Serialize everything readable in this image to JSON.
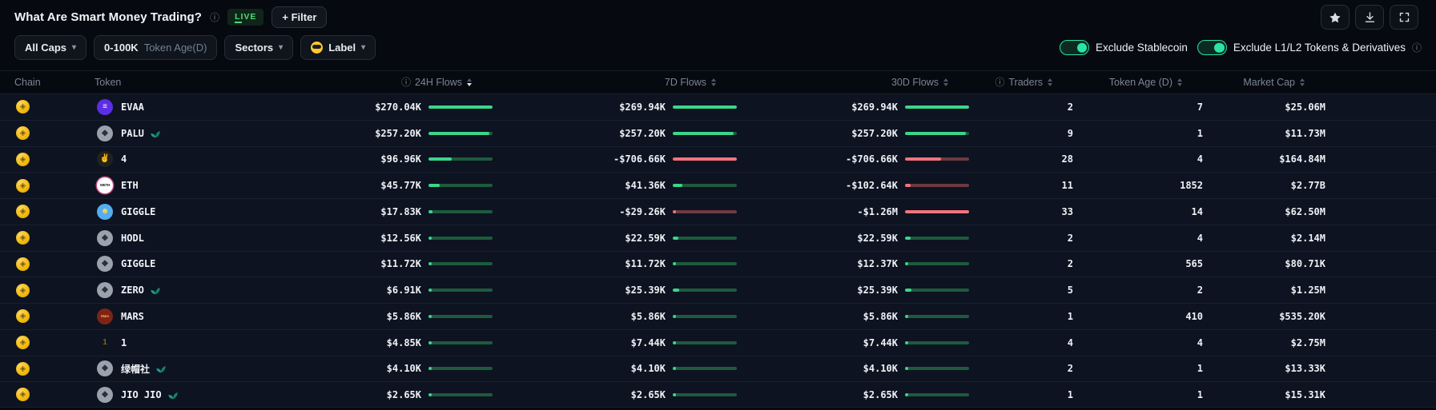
{
  "header": {
    "title": "What Are Smart Money Trading?",
    "live": "LIVE",
    "filter_button": "+ Filter",
    "action_icons": [
      "star-icon",
      "download-icon",
      "fullscreen-icon"
    ]
  },
  "filters": {
    "all_caps": "All Caps",
    "token_age_value": "0-100K",
    "token_age_label": "Token Age(D)",
    "sectors": "Sectors",
    "label": "Label"
  },
  "toggles": [
    {
      "label": "Exclude Stablecoin",
      "on": true,
      "info": false
    },
    {
      "label": "Exclude L1/L2 Tokens & Derivatives",
      "on": true,
      "info": true
    }
  ],
  "colors": {
    "positive": "#3bd68b",
    "positive_track": "#1d5b3d",
    "negative": "#f2747d",
    "negative_track": "#6e3a41",
    "accent_green": "#2ae3a5",
    "live_green": "#4fd978",
    "chain_gold": "#f0b90b"
  },
  "table": {
    "headers": [
      {
        "label": "Chain",
        "align": "left",
        "info": false,
        "sort": null
      },
      {
        "label": "Token",
        "align": "left",
        "info": false,
        "sort": null
      },
      {
        "label": "24H Flows",
        "align": "right",
        "info": true,
        "sort": "desc"
      },
      {
        "label": "7D Flows",
        "align": "right",
        "info": false,
        "sort": "none"
      },
      {
        "label": "30D Flows",
        "align": "right",
        "info": false,
        "sort": "none"
      },
      {
        "label": "Traders",
        "align": "right",
        "info": true,
        "sort": "none"
      },
      {
        "label": "Token Age (D)",
        "align": "right",
        "info": false,
        "sort": "none"
      },
      {
        "label": "Market Cap",
        "align": "right",
        "info": false,
        "sort": "none"
      }
    ],
    "rows": [
      {
        "chain": "BNB",
        "symbol": "EVAA",
        "sprout": false,
        "icon": {
          "bg": "#5b2ee5",
          "fg": "#ffffff",
          "glyph": "≡"
        },
        "flows": {
          "h24": {
            "v": 270.04,
            "text": "$270.04K"
          },
          "d7": {
            "v": 269.94,
            "text": "$269.94K"
          },
          "d30": {
            "v": 269.94,
            "text": "$269.94K"
          }
        },
        "traders": "2",
        "token_age": "7",
        "market_cap": "$25.06M"
      },
      {
        "chain": "BNB",
        "symbol": "PALU",
        "sprout": true,
        "icon": {
          "bg": "#9aa3ad",
          "fg": "#2b313a",
          "glyph": "◆"
        },
        "flows": {
          "h24": {
            "v": 257.2,
            "text": "$257.20K"
          },
          "d7": {
            "v": 257.2,
            "text": "$257.20K"
          },
          "d30": {
            "v": 257.2,
            "text": "$257.20K"
          }
        },
        "traders": "9",
        "token_age": "1",
        "market_cap": "$11.73M"
      },
      {
        "chain": "BNB",
        "symbol": "4",
        "sprout": false,
        "icon": {
          "bg": "#21231a",
          "fg": "#f2c33c",
          "glyph": "✌"
        },
        "flows": {
          "h24": {
            "v": 96.96,
            "text": "$96.96K"
          },
          "d7": {
            "v": -706.66,
            "text": "-$706.66K"
          },
          "d30": {
            "v": -706.66,
            "text": "-$706.66K"
          }
        },
        "traders": "28",
        "token_age": "4",
        "market_cap": "$164.84M"
      },
      {
        "chain": "BNB",
        "symbol": "ETH",
        "sprout": false,
        "icon": {
          "bg": "#ffffff",
          "fg": "#14171c",
          "glyph": "WETH",
          "ring": "#c9477e"
        },
        "flows": {
          "h24": {
            "v": 45.77,
            "text": "$45.77K"
          },
          "d7": {
            "v": 41.36,
            "text": "$41.36K"
          },
          "d30": {
            "v": -102.64,
            "text": "-$102.64K"
          }
        },
        "traders": "11",
        "token_age": "1852",
        "market_cap": "$2.77B"
      },
      {
        "chain": "BNB",
        "symbol": "GIGGLE",
        "sprout": false,
        "icon": {
          "bg": "#53aef0",
          "fg": "#ffd34d",
          "glyph": "☻"
        },
        "flows": {
          "h24": {
            "v": 17.83,
            "text": "$17.83K"
          },
          "d7": {
            "v": -29.26,
            "text": "-$29.26K"
          },
          "d30": {
            "v": -1260,
            "text": "-$1.26M"
          }
        },
        "traders": "33",
        "token_age": "14",
        "market_cap": "$62.50M"
      },
      {
        "chain": "BNB",
        "symbol": "HODL",
        "sprout": false,
        "icon": {
          "bg": "#9aa3ad",
          "fg": "#2b313a",
          "glyph": "◆"
        },
        "flows": {
          "h24": {
            "v": 12.56,
            "text": "$12.56K"
          },
          "d7": {
            "v": 22.59,
            "text": "$22.59K"
          },
          "d30": {
            "v": 22.59,
            "text": "$22.59K"
          }
        },
        "traders": "2",
        "token_age": "4",
        "market_cap": "$2.14M"
      },
      {
        "chain": "BNB",
        "symbol": "GIGGLE",
        "sprout": false,
        "icon": {
          "bg": "#9aa3ad",
          "fg": "#2b313a",
          "glyph": "◆"
        },
        "flows": {
          "h24": {
            "v": 11.72,
            "text": "$11.72K"
          },
          "d7": {
            "v": 11.72,
            "text": "$11.72K"
          },
          "d30": {
            "v": 12.37,
            "text": "$12.37K"
          }
        },
        "traders": "2",
        "token_age": "565",
        "market_cap": "$80.71K"
      },
      {
        "chain": "BNB",
        "symbol": "ZERO",
        "sprout": true,
        "icon": {
          "bg": "#9aa3ad",
          "fg": "#2b313a",
          "glyph": "◆"
        },
        "flows": {
          "h24": {
            "v": 6.91,
            "text": "$6.91K"
          },
          "d7": {
            "v": 25.39,
            "text": "$25.39K"
          },
          "d30": {
            "v": 25.39,
            "text": "$25.39K"
          }
        },
        "traders": "5",
        "token_age": "2",
        "market_cap": "$1.25M"
      },
      {
        "chain": "BNB",
        "symbol": "MARS",
        "sprout": false,
        "icon": {
          "bg": "#7e2317",
          "fg": "#ffb347",
          "glyph": "Mars"
        },
        "flows": {
          "h24": {
            "v": 5.86,
            "text": "$5.86K"
          },
          "d7": {
            "v": 5.86,
            "text": "$5.86K"
          },
          "d30": {
            "v": 5.86,
            "text": "$5.86K"
          }
        },
        "traders": "1",
        "token_age": "410",
        "market_cap": "$535.20K"
      },
      {
        "chain": "BNB",
        "symbol": "1",
        "sprout": false,
        "icon": {
          "bg": "radial-gradient(circle at 35% 32%, #f8d565, #dda categorie01f)",
          "fg": "#8a6413",
          "glyph": "1"
        },
        "flows": {
          "h24": {
            "v": 4.85,
            "text": "$4.85K"
          },
          "d7": {
            "v": 7.44,
            "text": "$7.44K"
          },
          "d30": {
            "v": 7.44,
            "text": "$7.44K"
          }
        },
        "traders": "4",
        "token_age": "4",
        "market_cap": "$2.75M"
      },
      {
        "chain": "BNB",
        "symbol": "绿帽社",
        "sprout": true,
        "icon": {
          "bg": "#9aa3ad",
          "fg": "#2b313a",
          "glyph": "◆"
        },
        "flows": {
          "h24": {
            "v": 4.1,
            "text": "$4.10K"
          },
          "d7": {
            "v": 4.1,
            "text": "$4.10K"
          },
          "d30": {
            "v": 4.1,
            "text": "$4.10K"
          }
        },
        "traders": "2",
        "token_age": "1",
        "market_cap": "$13.33K"
      },
      {
        "chain": "BNB",
        "symbol": "JIO JIO",
        "sprout": true,
        "icon": {
          "bg": "#9aa3ad",
          "fg": "#2b313a",
          "glyph": "◆"
        },
        "flows": {
          "h24": {
            "v": 2.65,
            "text": "$2.65K"
          },
          "d7": {
            "v": 2.65,
            "text": "$2.65K"
          },
          "d30": {
            "v": 2.65,
            "text": "$2.65K"
          }
        },
        "traders": "1",
        "token_age": "1",
        "market_cap": "$15.31K"
      }
    ]
  }
}
